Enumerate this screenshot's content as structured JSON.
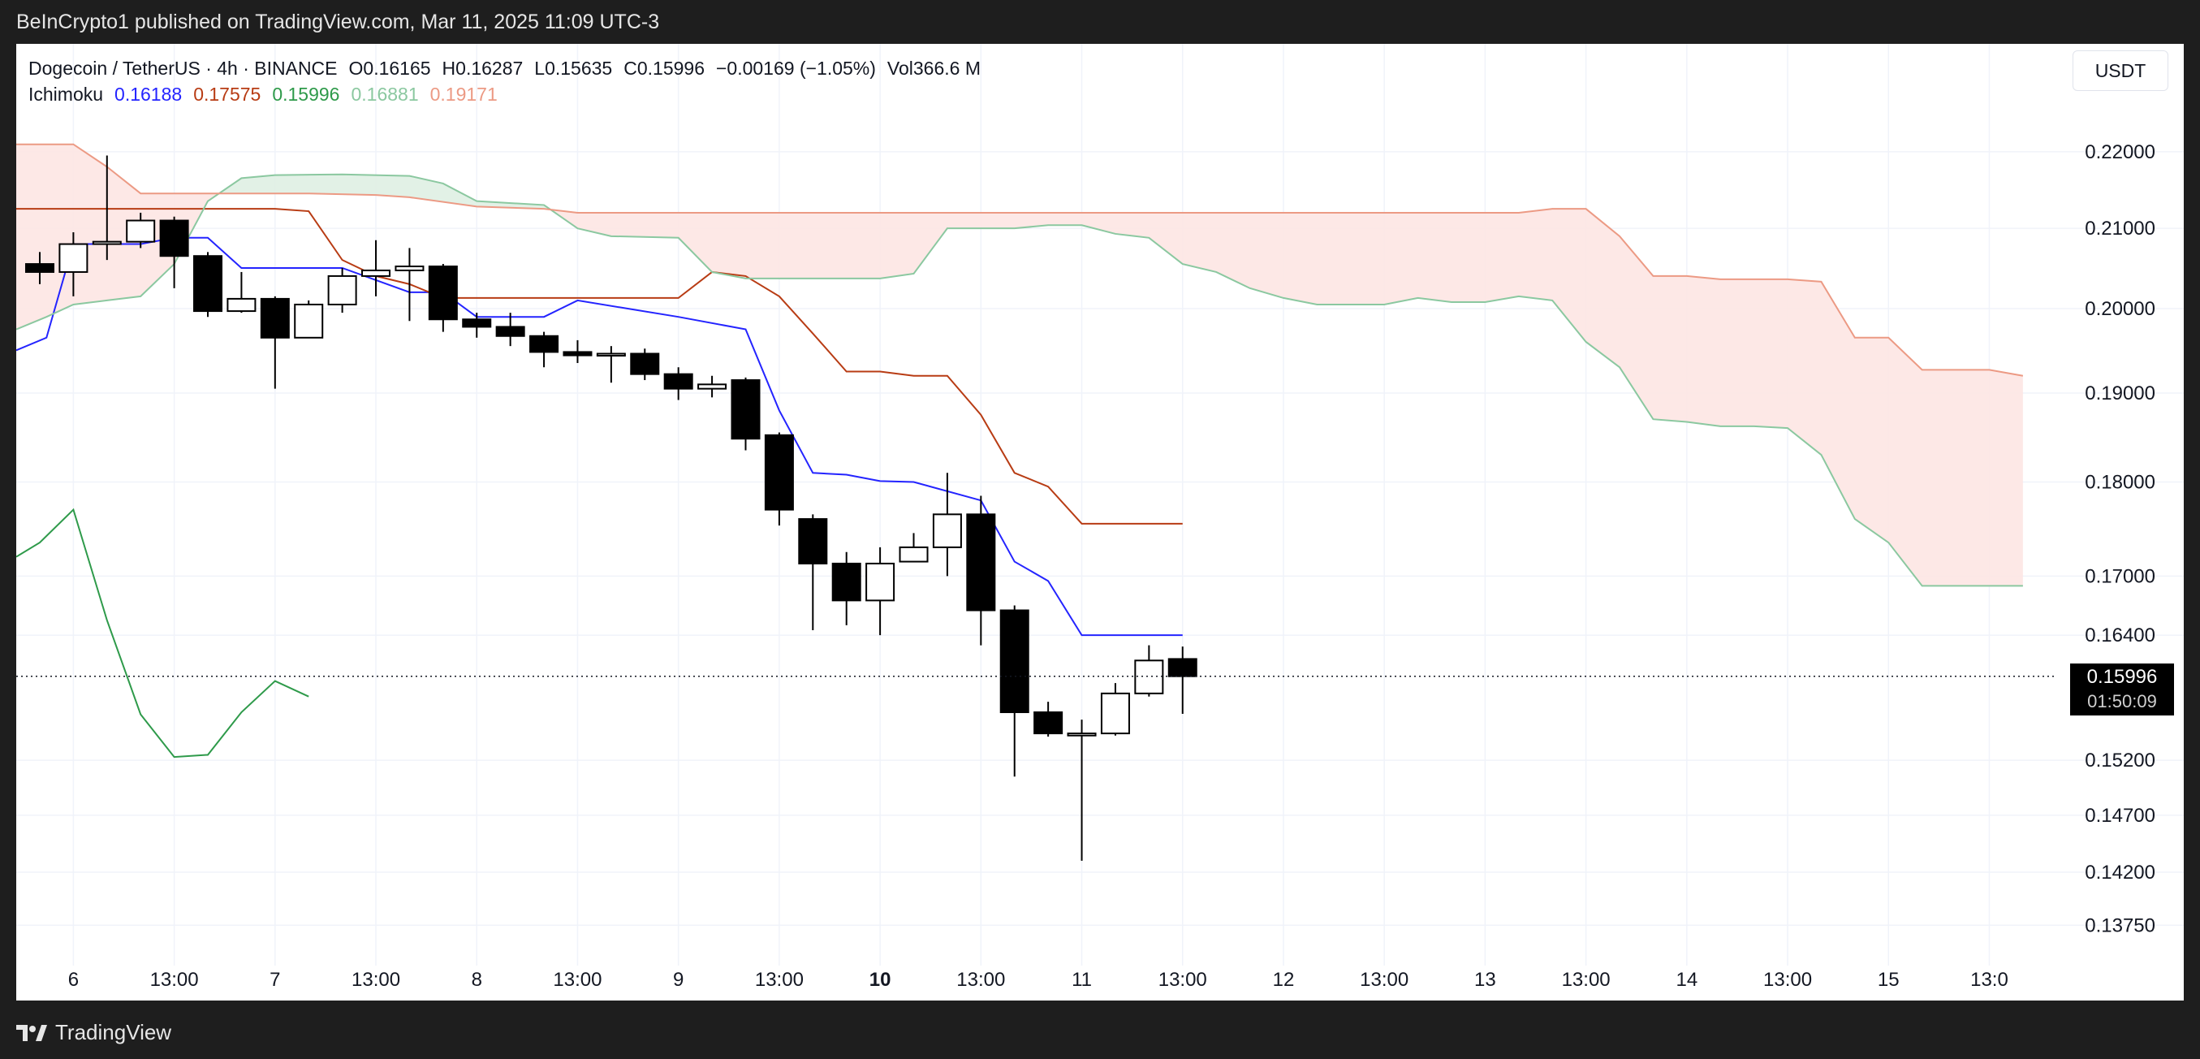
{
  "header": {
    "published": "BeInCrypto1 published on TradingView.com, Mar 11, 2025 11:09 UTC-3"
  },
  "legend": {
    "symbol": "Dogecoin / TetherUS · 4h · BINANCE",
    "open": "O0.16165",
    "high": "H0.16287",
    "low": "L0.15635",
    "close": "C0.15996",
    "change": "−0.00169 (−1.05%)",
    "volume": "Vol366.6 M",
    "indicator_name": "Ichimoku",
    "indicator_values": [
      "0.16188",
      "0.17575",
      "0.15996",
      "0.16881",
      "0.19171"
    ]
  },
  "currency_button": "USDT",
  "price_tag": {
    "price": "0.15996",
    "countdown": "01:50:09"
  },
  "footer": {
    "brand": "TradingView"
  },
  "colors": {
    "tenkan": "#2424ff",
    "kijun": "#b83c14",
    "chikou": "#2e9a4a",
    "span_a": "#8bc8a0",
    "span_b": "#ec9a84",
    "cloud_bull": "#dff0e3",
    "cloud_bear": "#fde6e3",
    "grid": "#f0f3fa"
  },
  "chart_data": {
    "type": "candlestick",
    "x_tick_labels": [
      {
        "label": "6",
        "t": 0,
        "bold": false
      },
      {
        "label": "13:00",
        "t": 3,
        "bold": false
      },
      {
        "label": "7",
        "t": 6,
        "bold": false
      },
      {
        "label": "13:00",
        "t": 9,
        "bold": false
      },
      {
        "label": "8",
        "t": 12,
        "bold": false
      },
      {
        "label": "13:00",
        "t": 15,
        "bold": false
      },
      {
        "label": "9",
        "t": 18,
        "bold": false
      },
      {
        "label": "13:00",
        "t": 21,
        "bold": false
      },
      {
        "label": "10",
        "t": 24,
        "bold": true
      },
      {
        "label": "13:00",
        "t": 27,
        "bold": false
      },
      {
        "label": "11",
        "t": 30,
        "bold": false
      },
      {
        "label": "13:00",
        "t": 33,
        "bold": false
      },
      {
        "label": "12",
        "t": 36,
        "bold": false
      },
      {
        "label": "13:00",
        "t": 39,
        "bold": false
      },
      {
        "label": "13",
        "t": 42,
        "bold": false
      },
      {
        "label": "13:00",
        "t": 45,
        "bold": false
      },
      {
        "label": "14",
        "t": 48,
        "bold": false
      },
      {
        "label": "13:00",
        "t": 51,
        "bold": false
      },
      {
        "label": "15",
        "t": 54,
        "bold": false
      },
      {
        "label": "13:0",
        "t": 57,
        "bold": false
      }
    ],
    "y_ticks": [
      "0.22000",
      "0.21000",
      "0.20000",
      "0.19000",
      "0.18000",
      "0.17000",
      "0.16400",
      "0.15200",
      "0.14700",
      "0.14200",
      "0.13750"
    ],
    "y_scale": "log",
    "y_range": [
      0.1355,
      0.2225
    ],
    "t_range": [
      -1.7,
      58.8
    ],
    "current_price": 0.15996,
    "candles": [
      {
        "t": -1,
        "o": 0.2055,
        "h": 0.207,
        "l": 0.203,
        "c": 0.2045
      },
      {
        "t": 0,
        "o": 0.2045,
        "h": 0.2095,
        "l": 0.2015,
        "c": 0.208
      },
      {
        "t": 1,
        "o": 0.208,
        "h": 0.2195,
        "l": 0.206,
        "c": 0.2083
      },
      {
        "t": 2,
        "o": 0.2083,
        "h": 0.212,
        "l": 0.2075,
        "c": 0.211
      },
      {
        "t": 3,
        "o": 0.211,
        "h": 0.2115,
        "l": 0.2025,
        "c": 0.2065
      },
      {
        "t": 4,
        "o": 0.2065,
        "h": 0.207,
        "l": 0.199,
        "c": 0.1997
      },
      {
        "t": 5,
        "o": 0.1997,
        "h": 0.2045,
        "l": 0.1995,
        "c": 0.2012
      },
      {
        "t": 6,
        "o": 0.2012,
        "h": 0.2015,
        "l": 0.1905,
        "c": 0.1965
      },
      {
        "t": 7,
        "o": 0.1965,
        "h": 0.201,
        "l": 0.1965,
        "c": 0.2005
      },
      {
        "t": 8,
        "o": 0.2005,
        "h": 0.205,
        "l": 0.1995,
        "c": 0.204
      },
      {
        "t": 9,
        "o": 0.204,
        "h": 0.2085,
        "l": 0.2015,
        "c": 0.2047
      },
      {
        "t": 10,
        "o": 0.2047,
        "h": 0.2075,
        "l": 0.1985,
        "c": 0.2052
      },
      {
        "t": 11,
        "o": 0.2052,
        "h": 0.2055,
        "l": 0.1972,
        "c": 0.1987
      },
      {
        "t": 12,
        "o": 0.1987,
        "h": 0.1995,
        "l": 0.1965,
        "c": 0.1978
      },
      {
        "t": 13,
        "o": 0.1978,
        "h": 0.1995,
        "l": 0.1955,
        "c": 0.1967
      },
      {
        "t": 14,
        "o": 0.1967,
        "h": 0.1972,
        "l": 0.193,
        "c": 0.1948
      },
      {
        "t": 15,
        "o": 0.1948,
        "h": 0.1962,
        "l": 0.1935,
        "c": 0.1944
      },
      {
        "t": 16,
        "o": 0.1944,
        "h": 0.1955,
        "l": 0.1912,
        "c": 0.1946
      },
      {
        "t": 17,
        "o": 0.1946,
        "h": 0.1952,
        "l": 0.1915,
        "c": 0.1922
      },
      {
        "t": 18,
        "o": 0.1922,
        "h": 0.193,
        "l": 0.1892,
        "c": 0.1905
      },
      {
        "t": 19,
        "o": 0.1905,
        "h": 0.192,
        "l": 0.1895,
        "c": 0.191
      },
      {
        "t": 20,
        "o": 0.1915,
        "h": 0.1918,
        "l": 0.1835,
        "c": 0.1848
      },
      {
        "t": 21,
        "o": 0.1852,
        "h": 0.1855,
        "l": 0.1753,
        "c": 0.177
      },
      {
        "t": 22,
        "o": 0.176,
        "h": 0.1765,
        "l": 0.1645,
        "c": 0.1713
      },
      {
        "t": 23,
        "o": 0.1713,
        "h": 0.1725,
        "l": 0.165,
        "c": 0.1675
      },
      {
        "t": 24,
        "o": 0.1675,
        "h": 0.173,
        "l": 0.164,
        "c": 0.1713
      },
      {
        "t": 25,
        "o": 0.1715,
        "h": 0.1745,
        "l": 0.1715,
        "c": 0.173
      },
      {
        "t": 26,
        "o": 0.173,
        "h": 0.181,
        "l": 0.17,
        "c": 0.1765
      },
      {
        "t": 27,
        "o": 0.1765,
        "h": 0.1785,
        "l": 0.163,
        "c": 0.1665
      },
      {
        "t": 28,
        "o": 0.1665,
        "h": 0.167,
        "l": 0.1505,
        "c": 0.1565
      },
      {
        "t": 29,
        "o": 0.1565,
        "h": 0.1575,
        "l": 0.1542,
        "c": 0.1545
      },
      {
        "t": 30,
        "o": 0.1543,
        "h": 0.1558,
        "l": 0.143,
        "c": 0.1545
      },
      {
        "t": 31,
        "o": 0.1545,
        "h": 0.1593,
        "l": 0.1543,
        "c": 0.1583
      },
      {
        "t": 32,
        "o": 0.1583,
        "h": 0.163,
        "l": 0.158,
        "c": 0.1615
      },
      {
        "t": 33,
        "o": 0.16165,
        "h": 0.16287,
        "l": 0.15635,
        "c": 0.15996
      }
    ],
    "series": [
      {
        "type": "line",
        "color_key": "tenkan",
        "points": [
          [
            -1.7,
            0.195
          ],
          [
            -0.8,
            0.1965
          ],
          [
            0,
            0.208
          ],
          [
            2,
            0.208
          ],
          [
            3,
            0.2088
          ],
          [
            4,
            0.2088
          ],
          [
            5,
            0.205
          ],
          [
            8,
            0.205
          ],
          [
            10,
            0.202
          ],
          [
            11,
            0.202
          ],
          [
            12,
            0.199
          ],
          [
            14,
            0.199
          ],
          [
            15,
            0.201
          ],
          [
            18,
            0.199
          ],
          [
            20,
            0.1975
          ],
          [
            21,
            0.188
          ],
          [
            22,
            0.181
          ],
          [
            23,
            0.1808
          ],
          [
            24,
            0.1801
          ],
          [
            25,
            0.18
          ],
          [
            27,
            0.178
          ],
          [
            28,
            0.1715
          ],
          [
            29,
            0.1695
          ],
          [
            30,
            0.164
          ],
          [
            33,
            0.164
          ]
        ]
      },
      {
        "type": "line",
        "color_key": "kijun",
        "points": [
          [
            -1.7,
            0.2125
          ],
          [
            6,
            0.2125
          ],
          [
            7,
            0.2122
          ],
          [
            8,
            0.206
          ],
          [
            9,
            0.204
          ],
          [
            10,
            0.203
          ],
          [
            11,
            0.2013
          ],
          [
            18,
            0.2013
          ],
          [
            19,
            0.2045
          ],
          [
            20,
            0.204
          ],
          [
            21,
            0.2015
          ],
          [
            22,
            0.197
          ],
          [
            23,
            0.1925
          ],
          [
            24,
            0.1925
          ],
          [
            25,
            0.192
          ],
          [
            26,
            0.192
          ],
          [
            27,
            0.1875
          ],
          [
            28,
            0.181
          ],
          [
            29,
            0.1795
          ],
          [
            30,
            0.1755
          ],
          [
            33,
            0.1755
          ]
        ]
      },
      {
        "type": "line",
        "color_key": "chikou",
        "points": [
          [
            -1.7,
            0.172
          ],
          [
            -1,
            0.1735
          ],
          [
            0,
            0.177
          ],
          [
            1,
            0.1655
          ],
          [
            2,
            0.1563
          ],
          [
            3,
            0.1523
          ],
          [
            4,
            0.1525
          ],
          [
            5,
            0.1565
          ],
          [
            6,
            0.1595
          ],
          [
            7,
            0.158
          ]
        ]
      },
      {
        "type": "cloud",
        "span_a_key": "span_a",
        "span_b_key": "span_b",
        "span_a": [
          [
            -1.7,
            0.1975
          ],
          [
            -0.8,
            0.199
          ],
          [
            0,
            0.2005
          ],
          [
            1,
            0.201
          ],
          [
            2,
            0.2015
          ],
          [
            3,
            0.2055
          ],
          [
            4,
            0.2135
          ],
          [
            5,
            0.2165
          ],
          [
            6,
            0.2169
          ],
          [
            8,
            0.217
          ],
          [
            10,
            0.2168
          ],
          [
            11,
            0.2158
          ],
          [
            12,
            0.2135
          ],
          [
            14,
            0.213
          ],
          [
            15,
            0.21
          ],
          [
            16,
            0.209
          ],
          [
            18,
            0.2088
          ],
          [
            19,
            0.2045
          ],
          [
            20,
            0.2037
          ],
          [
            24,
            0.2037
          ],
          [
            25,
            0.2043
          ],
          [
            26,
            0.21
          ],
          [
            28,
            0.21
          ],
          [
            29,
            0.2104
          ],
          [
            30,
            0.2104
          ],
          [
            31,
            0.2093
          ],
          [
            32,
            0.2088
          ],
          [
            33,
            0.2055
          ],
          [
            34,
            0.2045
          ],
          [
            35,
            0.2025
          ],
          [
            36,
            0.2013
          ],
          [
            37,
            0.2005
          ],
          [
            39,
            0.2005
          ],
          [
            40,
            0.2013
          ],
          [
            41,
            0.2008
          ],
          [
            42,
            0.2008
          ],
          [
            43,
            0.2015
          ],
          [
            44,
            0.201
          ],
          [
            45,
            0.196
          ],
          [
            46,
            0.193
          ],
          [
            47,
            0.187
          ],
          [
            48,
            0.1867
          ],
          [
            49,
            0.1862
          ],
          [
            50,
            0.1862
          ],
          [
            51,
            0.186
          ],
          [
            52,
            0.183
          ],
          [
            53,
            0.176
          ],
          [
            54,
            0.1735
          ],
          [
            55,
            0.169
          ],
          [
            56,
            0.169
          ],
          [
            57,
            0.169
          ],
          [
            58,
            0.169
          ]
        ],
        "span_b": [
          [
            -1.7,
            0.221
          ],
          [
            0,
            0.221
          ],
          [
            1,
            0.218
          ],
          [
            2,
            0.2145
          ],
          [
            7,
            0.2145
          ],
          [
            9,
            0.2143
          ],
          [
            10,
            0.214
          ],
          [
            12,
            0.2128
          ],
          [
            14,
            0.2125
          ],
          [
            15,
            0.212
          ],
          [
            43,
            0.212
          ],
          [
            44,
            0.2125
          ],
          [
            45,
            0.2125
          ],
          [
            46,
            0.209
          ],
          [
            47,
            0.204
          ],
          [
            48,
            0.204
          ],
          [
            49,
            0.2036
          ],
          [
            51,
            0.2036
          ],
          [
            52,
            0.2033
          ],
          [
            53,
            0.1965
          ],
          [
            54,
            0.1965
          ],
          [
            55,
            0.1927
          ],
          [
            57,
            0.1927
          ],
          [
            58,
            0.192
          ]
        ]
      }
    ]
  }
}
